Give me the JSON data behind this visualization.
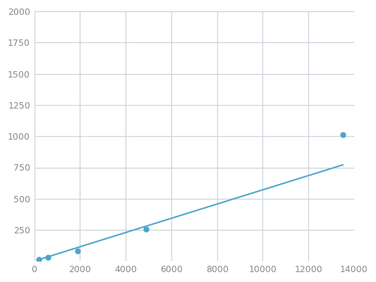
{
  "x": [
    200,
    600,
    1900,
    4900,
    13500
  ],
  "y": [
    15,
    30,
    80,
    255,
    1010
  ],
  "line_color": "#4da6c8",
  "marker_color": "#4da6c8",
  "marker_size": 5,
  "xlim": [
    0,
    14000
  ],
  "ylim": [
    0,
    2000
  ],
  "xticks": [
    0,
    2000,
    4000,
    6000,
    8000,
    10000,
    12000,
    14000
  ],
  "yticks": [
    0,
    250,
    500,
    750,
    1000,
    1250,
    1500,
    1750,
    2000
  ],
  "grid_color": "#c8d0d8",
  "background_color": "#ffffff",
  "tick_fontsize": 9,
  "tick_color": "#888888"
}
